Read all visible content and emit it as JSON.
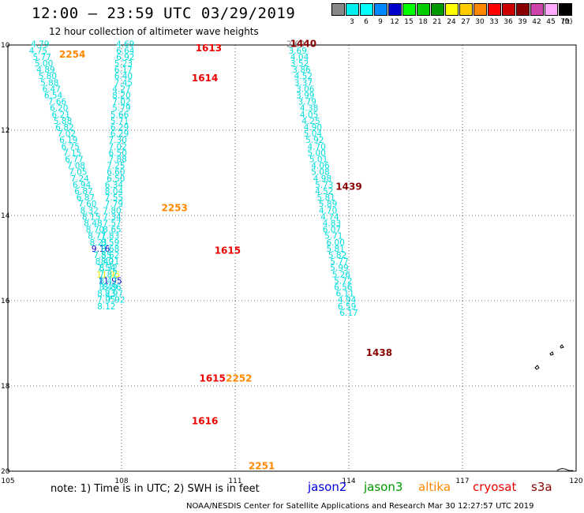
{
  "title": "12:00 – 23:59 UTC 03/29/2019",
  "subtitle": "12 hour collection of altimeter wave heights",
  "scale": {
    "unit": "(ft)",
    "bins": [
      {
        "color": "#888888",
        "label": ""
      },
      {
        "color": "#00eeee",
        "label": "3"
      },
      {
        "color": "#00ffff",
        "label": "6"
      },
      {
        "color": "#0088ff",
        "label": "9"
      },
      {
        "color": "#0000cc",
        "label": "12"
      },
      {
        "color": "#00ff00",
        "label": "15"
      },
      {
        "color": "#00cc00",
        "label": "18"
      },
      {
        "color": "#009900",
        "label": "21"
      },
      {
        "color": "#ffff00",
        "label": "24"
      },
      {
        "color": "#ffcc00",
        "label": "27"
      },
      {
        "color": "#ff8800",
        "label": "30"
      },
      {
        "color": "#ff0000",
        "label": "33"
      },
      {
        "color": "#cc0000",
        "label": "36"
      },
      {
        "color": "#880000",
        "label": "39"
      },
      {
        "color": "#cc44aa",
        "label": "42"
      },
      {
        "color": "#ffaaff",
        "label": "45"
      },
      {
        "color": "#000000",
        "label": "70"
      }
    ]
  },
  "axes": {
    "lon_ticks": [
      "105",
      "108",
      "111",
      "114",
      "117",
      "120"
    ],
    "lat_ticks": [
      "10",
      "12",
      "14",
      "16",
      "18",
      "20"
    ],
    "lon_range": [
      105,
      120
    ],
    "lat_range": [
      10,
      20
    ],
    "lat_inverted_display": true
  },
  "passes": [
    {
      "label": "2254",
      "color": "#ff8800",
      "lon": 106.7,
      "lat": 10.3
    },
    {
      "label": "1613",
      "color": "#ee0000",
      "lon": 110.3,
      "lat": 10.15
    },
    {
      "label": "1614",
      "color": "#ee0000",
      "lon": 110.2,
      "lat": 10.85
    },
    {
      "label": "1440",
      "color": "#880000",
      "lon": 112.8,
      "lat": 10.05
    },
    {
      "label": "1439",
      "color": "#880000",
      "lon": 114.0,
      "lat": 13.4
    },
    {
      "label": "2253",
      "color": "#ff8800",
      "lon": 109.4,
      "lat": 13.9
    },
    {
      "label": "1615",
      "color": "#ee0000",
      "lon": 110.8,
      "lat": 14.9
    },
    {
      "label": "1438",
      "color": "#880000",
      "lon": 114.8,
      "lat": 17.3
    },
    {
      "label": "1615",
      "color": "#ee0000",
      "lon": 110.4,
      "lat": 17.9
    },
    {
      "label": "2252",
      "color": "#ff8800",
      "lon": 111.1,
      "lat": 17.9
    },
    {
      "label": "1616",
      "color": "#ee0000",
      "lon": 110.2,
      "lat": 18.9
    },
    {
      "label": "2251",
      "color": "#ff8800",
      "lon": 111.7,
      "lat": 19.95
    }
  ],
  "tracks": [
    {
      "name": "",
      "points": [
        {
          "v": "4.79",
          "c": "#00dddd",
          "lon": 105.85,
          "lat": 10.05
        },
        {
          "v": "4.75",
          "c": "#00dddd",
          "lon": 105.8,
          "lat": 10.2
        },
        {
          "v": "5.77",
          "c": "#00dddd",
          "lon": 105.9,
          "lat": 10.35
        },
        {
          "v": "5.00",
          "c": "#00dddd",
          "lon": 105.95,
          "lat": 10.5
        },
        {
          "v": "4.89",
          "c": "#00dddd",
          "lon": 106.0,
          "lat": 10.65
        },
        {
          "v": "5.80",
          "c": "#00dddd",
          "lon": 106.05,
          "lat": 10.8
        },
        {
          "v": "5.88",
          "c": "#00dddd",
          "lon": 106.1,
          "lat": 10.95
        },
        {
          "v": "6.47",
          "c": "#00dddd",
          "lon": 106.15,
          "lat": 11.1
        },
        {
          "v": "6.54",
          "c": "#00dddd",
          "lon": 106.2,
          "lat": 11.25
        },
        {
          "v": "7.66",
          "c": "#00dddd",
          "lon": 106.3,
          "lat": 11.4
        },
        {
          "v": "6.20",
          "c": "#00dddd",
          "lon": 106.35,
          "lat": 11.55
        },
        {
          "v": "6.21",
          "c": "#00dddd",
          "lon": 106.4,
          "lat": 11.7
        },
        {
          "v": "5.88",
          "c": "#00dddd",
          "lon": 106.45,
          "lat": 11.85
        },
        {
          "v": "6.82",
          "c": "#00dddd",
          "lon": 106.5,
          "lat": 12.0
        },
        {
          "v": "7.02",
          "c": "#00dddd",
          "lon": 106.55,
          "lat": 12.15
        },
        {
          "v": "6.19",
          "c": "#00dddd",
          "lon": 106.6,
          "lat": 12.3
        },
        {
          "v": "6.75",
          "c": "#00dddd",
          "lon": 106.65,
          "lat": 12.45
        },
        {
          "v": "7.15",
          "c": "#00dddd",
          "lon": 106.7,
          "lat": 12.6
        },
        {
          "v": "6.77",
          "c": "#00dddd",
          "lon": 106.75,
          "lat": 12.75
        },
        {
          "v": "7.08",
          "c": "#00dddd",
          "lon": 106.8,
          "lat": 12.9
        },
        {
          "v": "7.05",
          "c": "#00dddd",
          "lon": 106.85,
          "lat": 13.05
        },
        {
          "v": "7.24",
          "c": "#00dddd",
          "lon": 106.9,
          "lat": 13.2
        },
        {
          "v": "6.94",
          "c": "#00dddd",
          "lon": 106.95,
          "lat": 13.35
        },
        {
          "v": "6.87",
          "c": "#00dddd",
          "lon": 107.0,
          "lat": 13.5
        },
        {
          "v": "6.87",
          "c": "#00dddd",
          "lon": 107.05,
          "lat": 13.65
        },
        {
          "v": "7.60",
          "c": "#00dddd",
          "lon": 107.1,
          "lat": 13.8
        },
        {
          "v": "8.32",
          "c": "#00dddd",
          "lon": 107.15,
          "lat": 13.95
        },
        {
          "v": "8.15",
          "c": "#00dddd",
          "lon": 107.2,
          "lat": 14.1
        },
        {
          "v": "8.48",
          "c": "#00dddd",
          "lon": 107.25,
          "lat": 14.25
        },
        {
          "v": "8.70",
          "c": "#00dddd",
          "lon": 107.3,
          "lat": 14.4
        },
        {
          "v": "8.71",
          "c": "#00dddd",
          "lon": 107.35,
          "lat": 14.55
        },
        {
          "v": "8.21",
          "c": "#00dddd",
          "lon": 107.4,
          "lat": 14.7
        },
        {
          "v": "9.16",
          "c": "#0000cc",
          "lon": 107.45,
          "lat": 14.85
        },
        {
          "v": "7.55",
          "c": "#00dddd",
          "lon": 107.5,
          "lat": 15.0
        },
        {
          "v": "8.40",
          "c": "#00dddd",
          "lon": 107.55,
          "lat": 15.15
        },
        {
          "v": "7.54",
          "c": "#00dddd",
          "lon": 107.6,
          "lat": 15.3
        },
        {
          "v": "11.95",
          "c": "#eeee00",
          "lon": 107.65,
          "lat": 15.45
        },
        {
          "v": "11.95",
          "c": "#0000cc",
          "lon": 107.7,
          "lat": 15.6
        },
        {
          "v": "8.86",
          "c": "#00dddd",
          "lon": 107.75,
          "lat": 15.75
        },
        {
          "v": "8.97",
          "c": "#00dddd",
          "lon": 107.8,
          "lat": 15.9
        },
        {
          "v": "7.92",
          "c": "#00dddd",
          "lon": 107.85,
          "lat": 16.05
        }
      ]
    },
    {
      "name": "",
      "points": [
        {
          "v": "4.69",
          "c": "#00dddd",
          "lon": 108.1,
          "lat": 10.05
        },
        {
          "v": "6.64",
          "c": "#00dddd",
          "lon": 108.1,
          "lat": 10.2
        },
        {
          "v": "6.92",
          "c": "#00dddd",
          "lon": 108.1,
          "lat": 10.35
        },
        {
          "v": "5.23",
          "c": "#00dddd",
          "lon": 108.05,
          "lat": 10.5
        },
        {
          "v": "6.17",
          "c": "#00dddd",
          "lon": 108.05,
          "lat": 10.65
        },
        {
          "v": "6.40",
          "c": "#00dddd",
          "lon": 108.05,
          "lat": 10.8
        },
        {
          "v": "7.45",
          "c": "#00dddd",
          "lon": 108.05,
          "lat": 10.95
        },
        {
          "v": "4.27",
          "c": "#00dddd",
          "lon": 108.0,
          "lat": 11.1
        },
        {
          "v": "8.20",
          "c": "#00dddd",
          "lon": 108.0,
          "lat": 11.25
        },
        {
          "v": "7.02",
          "c": "#00dddd",
          "lon": 108.0,
          "lat": 11.4
        },
        {
          "v": "5.79",
          "c": "#00dddd",
          "lon": 108.0,
          "lat": 11.55
        },
        {
          "v": "5.66",
          "c": "#00dddd",
          "lon": 107.95,
          "lat": 11.7
        },
        {
          "v": "5.71",
          "c": "#00dddd",
          "lon": 107.95,
          "lat": 11.85
        },
        {
          "v": "6.29",
          "c": "#00dddd",
          "lon": 107.95,
          "lat": 12.0
        },
        {
          "v": "6.29",
          "c": "#00dddd",
          "lon": 107.95,
          "lat": 12.15
        },
        {
          "v": "7.30",
          "c": "#00dddd",
          "lon": 107.9,
          "lat": 12.3
        },
        {
          "v": "7.02",
          "c": "#00dddd",
          "lon": 107.9,
          "lat": 12.45
        },
        {
          "v": "6.50",
          "c": "#00dddd",
          "lon": 107.9,
          "lat": 12.6
        },
        {
          "v": "7.88",
          "c": "#00dddd",
          "lon": 107.9,
          "lat": 12.75
        },
        {
          "v": "7.25",
          "c": "#00dddd",
          "lon": 107.85,
          "lat": 12.9
        },
        {
          "v": "6.60",
          "c": "#00dddd",
          "lon": 107.85,
          "lat": 13.05
        },
        {
          "v": "6.50",
          "c": "#00dddd",
          "lon": 107.85,
          "lat": 13.2
        },
        {
          "v": "6.34",
          "c": "#00dddd",
          "lon": 107.8,
          "lat": 13.35
        },
        {
          "v": "8.04",
          "c": "#00dddd",
          "lon": 107.8,
          "lat": 13.5
        },
        {
          "v": "7.55",
          "c": "#00dddd",
          "lon": 107.8,
          "lat": 13.65
        },
        {
          "v": "7.79",
          "c": "#00dddd",
          "lon": 107.8,
          "lat": 13.8
        },
        {
          "v": "7.80",
          "c": "#00dddd",
          "lon": 107.75,
          "lat": 13.95
        },
        {
          "v": "7.34",
          "c": "#00dddd",
          "lon": 107.75,
          "lat": 14.1
        },
        {
          "v": "7.57",
          "c": "#00dddd",
          "lon": 107.75,
          "lat": 14.25
        },
        {
          "v": "8.65",
          "c": "#00dddd",
          "lon": 107.75,
          "lat": 14.4
        },
        {
          "v": "7.83",
          "c": "#00dddd",
          "lon": 107.7,
          "lat": 14.55
        },
        {
          "v": "8.59",
          "c": "#00dddd",
          "lon": 107.7,
          "lat": 14.7
        },
        {
          "v": "8.68",
          "c": "#00dddd",
          "lon": 107.7,
          "lat": 14.85
        },
        {
          "v": "8.62",
          "c": "#00dddd",
          "lon": 107.7,
          "lat": 15.0
        },
        {
          "v": "8.21",
          "c": "#00dddd",
          "lon": 107.7,
          "lat": 15.15
        },
        {
          "v": "8.32",
          "c": "#00dddd",
          "lon": 107.65,
          "lat": 15.3
        },
        {
          "v": "7.87",
          "c": "#00dddd",
          "lon": 107.65,
          "lat": 15.45
        },
        {
          "v": "8.47",
          "c": "#00dddd",
          "lon": 107.65,
          "lat": 15.6
        },
        {
          "v": "8.49",
          "c": "#00dddd",
          "lon": 107.65,
          "lat": 15.75
        },
        {
          "v": "8.23",
          "c": "#00dddd",
          "lon": 107.6,
          "lat": 15.9
        },
        {
          "v": "7.95",
          "c": "#00dddd",
          "lon": 107.6,
          "lat": 16.05
        },
        {
          "v": "8.12",
          "c": "#00dddd",
          "lon": 107.6,
          "lat": 16.2
        }
      ]
    },
    {
      "name": "",
      "points": [
        {
          "v": "2.69",
          "c": "#888888",
          "lon": 112.6,
          "lat": 10.05
        },
        {
          "v": "3.69",
          "c": "#00dddd",
          "lon": 112.65,
          "lat": 10.2
        },
        {
          "v": "4.04",
          "c": "#00dddd",
          "lon": 112.7,
          "lat": 10.35
        },
        {
          "v": "3.52",
          "c": "#00dddd",
          "lon": 112.7,
          "lat": 10.5
        },
        {
          "v": "3.86",
          "c": "#00dddd",
          "lon": 112.75,
          "lat": 10.65
        },
        {
          "v": "4.52",
          "c": "#00dddd",
          "lon": 112.8,
          "lat": 10.8
        },
        {
          "v": "3.37",
          "c": "#00dddd",
          "lon": 112.8,
          "lat": 10.95
        },
        {
          "v": "3.06",
          "c": "#00dddd",
          "lon": 112.85,
          "lat": 11.1
        },
        {
          "v": "3.99",
          "c": "#00dddd",
          "lon": 112.85,
          "lat": 11.25
        },
        {
          "v": "3.79",
          "c": "#00dddd",
          "lon": 112.9,
          "lat": 11.4
        },
        {
          "v": "4.38",
          "c": "#00dddd",
          "lon": 112.95,
          "lat": 11.55
        },
        {
          "v": "4.05",
          "c": "#00dddd",
          "lon": 112.95,
          "lat": 11.7
        },
        {
          "v": "4.25",
          "c": "#00dddd",
          "lon": 113.0,
          "lat": 11.85
        },
        {
          "v": "4.90",
          "c": "#00dddd",
          "lon": 113.05,
          "lat": 12.0
        },
        {
          "v": "5.04",
          "c": "#00dddd",
          "lon": 113.05,
          "lat": 12.15
        },
        {
          "v": "5.92",
          "c": "#00dddd",
          "lon": 113.1,
          "lat": 12.3
        },
        {
          "v": "4.70",
          "c": "#00dddd",
          "lon": 113.15,
          "lat": 12.45
        },
        {
          "v": "5.00",
          "c": "#00dddd",
          "lon": 113.15,
          "lat": 12.6
        },
        {
          "v": "5.01",
          "c": "#00dddd",
          "lon": 113.2,
          "lat": 12.75
        },
        {
          "v": "4.06",
          "c": "#00dddd",
          "lon": 113.25,
          "lat": 12.9
        },
        {
          "v": "5.08",
          "c": "#00dddd",
          "lon": 113.25,
          "lat": 13.05
        },
        {
          "v": "4.98",
          "c": "#00dddd",
          "lon": 113.3,
          "lat": 13.2
        },
        {
          "v": "5.73",
          "c": "#00dddd",
          "lon": 113.35,
          "lat": 13.35
        },
        {
          "v": "4.52",
          "c": "#00dddd",
          "lon": 113.35,
          "lat": 13.5
        },
        {
          "v": "5.81",
          "c": "#00dddd",
          "lon": 113.4,
          "lat": 13.65
        },
        {
          "v": "5.89",
          "c": "#00dddd",
          "lon": 113.45,
          "lat": 13.8
        },
        {
          "v": "4.70",
          "c": "#00dddd",
          "lon": 113.45,
          "lat": 13.95
        },
        {
          "v": "4.74",
          "c": "#00dddd",
          "lon": 113.5,
          "lat": 14.1
        },
        {
          "v": "4.83",
          "c": "#00dddd",
          "lon": 113.55,
          "lat": 14.25
        },
        {
          "v": "6.07",
          "c": "#00dddd",
          "lon": 113.55,
          "lat": 14.4
        },
        {
          "v": "5.71",
          "c": "#00dddd",
          "lon": 113.6,
          "lat": 14.55
        },
        {
          "v": "6.00",
          "c": "#00dddd",
          "lon": 113.65,
          "lat": 14.7
        },
        {
          "v": "5.81",
          "c": "#00dddd",
          "lon": 113.65,
          "lat": 14.85
        },
        {
          "v": "5.82",
          "c": "#00dddd",
          "lon": 113.7,
          "lat": 15.0
        },
        {
          "v": "5.77",
          "c": "#00dddd",
          "lon": 113.75,
          "lat": 15.15
        },
        {
          "v": "5.99",
          "c": "#00dddd",
          "lon": 113.75,
          "lat": 15.3
        },
        {
          "v": "5.26",
          "c": "#00dddd",
          "lon": 113.8,
          "lat": 15.45
        },
        {
          "v": "5.72",
          "c": "#00dddd",
          "lon": 113.85,
          "lat": 15.6
        },
        {
          "v": "6.56",
          "c": "#00dddd",
          "lon": 113.85,
          "lat": 15.75
        },
        {
          "v": "6.11",
          "c": "#00dddd",
          "lon": 113.9,
          "lat": 15.9
        },
        {
          "v": "4.94",
          "c": "#00dddd",
          "lon": 113.95,
          "lat": 16.05
        },
        {
          "v": "6.59",
          "c": "#00dddd",
          "lon": 113.95,
          "lat": 16.2
        },
        {
          "v": "6.17",
          "c": "#00dddd",
          "lon": 114.0,
          "lat": 16.35
        }
      ]
    }
  ],
  "footer": {
    "note": "note:  1) Time is in UTC;  2) SWH is in feet",
    "satellites": [
      {
        "name": "jason2",
        "color": "#0000dd"
      },
      {
        "name": "jason3",
        "color": "#009900"
      },
      {
        "name": "altika",
        "color": "#ff8800"
      },
      {
        "name": "cryosat",
        "color": "#ee0000"
      },
      {
        "name": "s3a",
        "color": "#880000"
      }
    ],
    "credit": "NOAA/NESDIS Center for Satellite Applications and Research    Mar 30 12:27:57 UTC 2019"
  }
}
